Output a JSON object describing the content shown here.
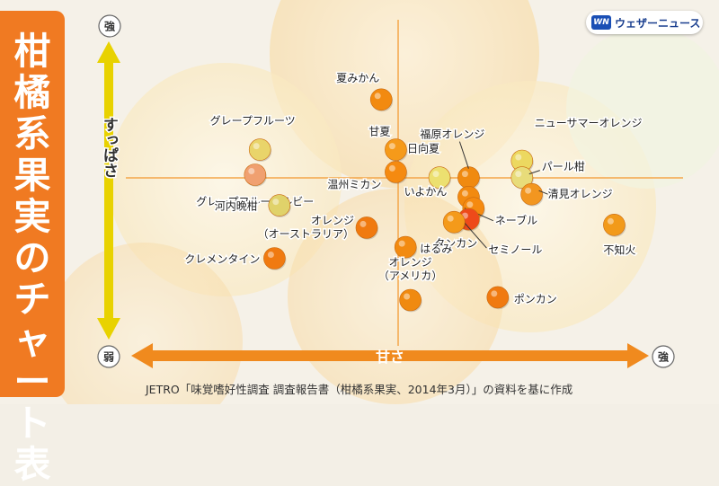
{
  "title": "柑橘系果実のチャート表",
  "brand": {
    "logo": "WN",
    "name": "ウェザーニュース"
  },
  "source": "JETRO「味覚嗜好性調査 調査報告書（柑橘系果実、2014年3月）」の資料を基に作成",
  "colors": {
    "title_bg": "#f07a22",
    "y_arrow": "#e8d200",
    "x_arrow": "#f08a1e",
    "quad_line": "#f4a64a"
  },
  "chart_data": {
    "type": "scatter",
    "xlabel": "甘さ",
    "ylabel": "すっぱさ",
    "x_low_label": "弱",
    "x_high_label": "強",
    "y_high_label": "強",
    "xlim": [
      0,
      100
    ],
    "ylim": [
      0,
      100
    ],
    "grid": false,
    "points": [
      {
        "label": "夏みかん",
        "x": 48,
        "y": 82,
        "color": "#f28a10"
      },
      {
        "label": "グレープフルーツ",
        "x": 23,
        "y": 64,
        "color": "#e9d46a"
      },
      {
        "label": "甘夏",
        "x": 51,
        "y": 64,
        "color": "#f59a1a"
      },
      {
        "label": "温州ミカン",
        "x": 51,
        "y": 56,
        "color": "#f58a10"
      },
      {
        "label": "グレープフルーツルビー",
        "x": 22,
        "y": 55,
        "color": "#f0a070"
      },
      {
        "label": "河内晩柑",
        "x": 27,
        "y": 44,
        "color": "#e0d26a"
      },
      {
        "label": "福原オレンジ",
        "x": 66,
        "y": 54,
        "color": "#f08a10"
      },
      {
        "label": "日向夏",
        "x": 60,
        "y": 54,
        "color": "#ece070"
      },
      {
        "label": "ニューサマーオレンジ",
        "x": 77,
        "y": 60,
        "color": "#ecd860"
      },
      {
        "label": "パール柑",
        "x": 77,
        "y": 54,
        "color": "#e8dc7a"
      },
      {
        "label": "清見オレンジ",
        "x": 79,
        "y": 48,
        "color": "#f29620"
      },
      {
        "label": "いよかん",
        "x": 66,
        "y": 47,
        "color": "#f28a10"
      },
      {
        "label": "ネーブル",
        "x": 67,
        "y": 43,
        "color": "#f58a10"
      },
      {
        "label": "セミノール",
        "x": 66,
        "y": 39,
        "color": "#ee4a1a"
      },
      {
        "label": "タンカン",
        "x": 63,
        "y": 38,
        "color": "#f49a1a"
      },
      {
        "label": "不知火",
        "x": 96,
        "y": 37,
        "color": "#f29a1a"
      },
      {
        "label": "オレンジ（オーストラリア）",
        "x": 45,
        "y": 36,
        "color": "#f07a10"
      },
      {
        "label": "はるみ",
        "x": 53,
        "y": 29,
        "color": "#f28a10"
      },
      {
        "label": "クレメンタイン",
        "x": 26,
        "y": 25,
        "color": "#f07a10"
      },
      {
        "label": "オレンジ（アメリカ）",
        "x": 54,
        "y": 10,
        "color": "#f08a10"
      },
      {
        "label": "ポンカン",
        "x": 72,
        "y": 11,
        "color": "#f07a10"
      }
    ]
  }
}
